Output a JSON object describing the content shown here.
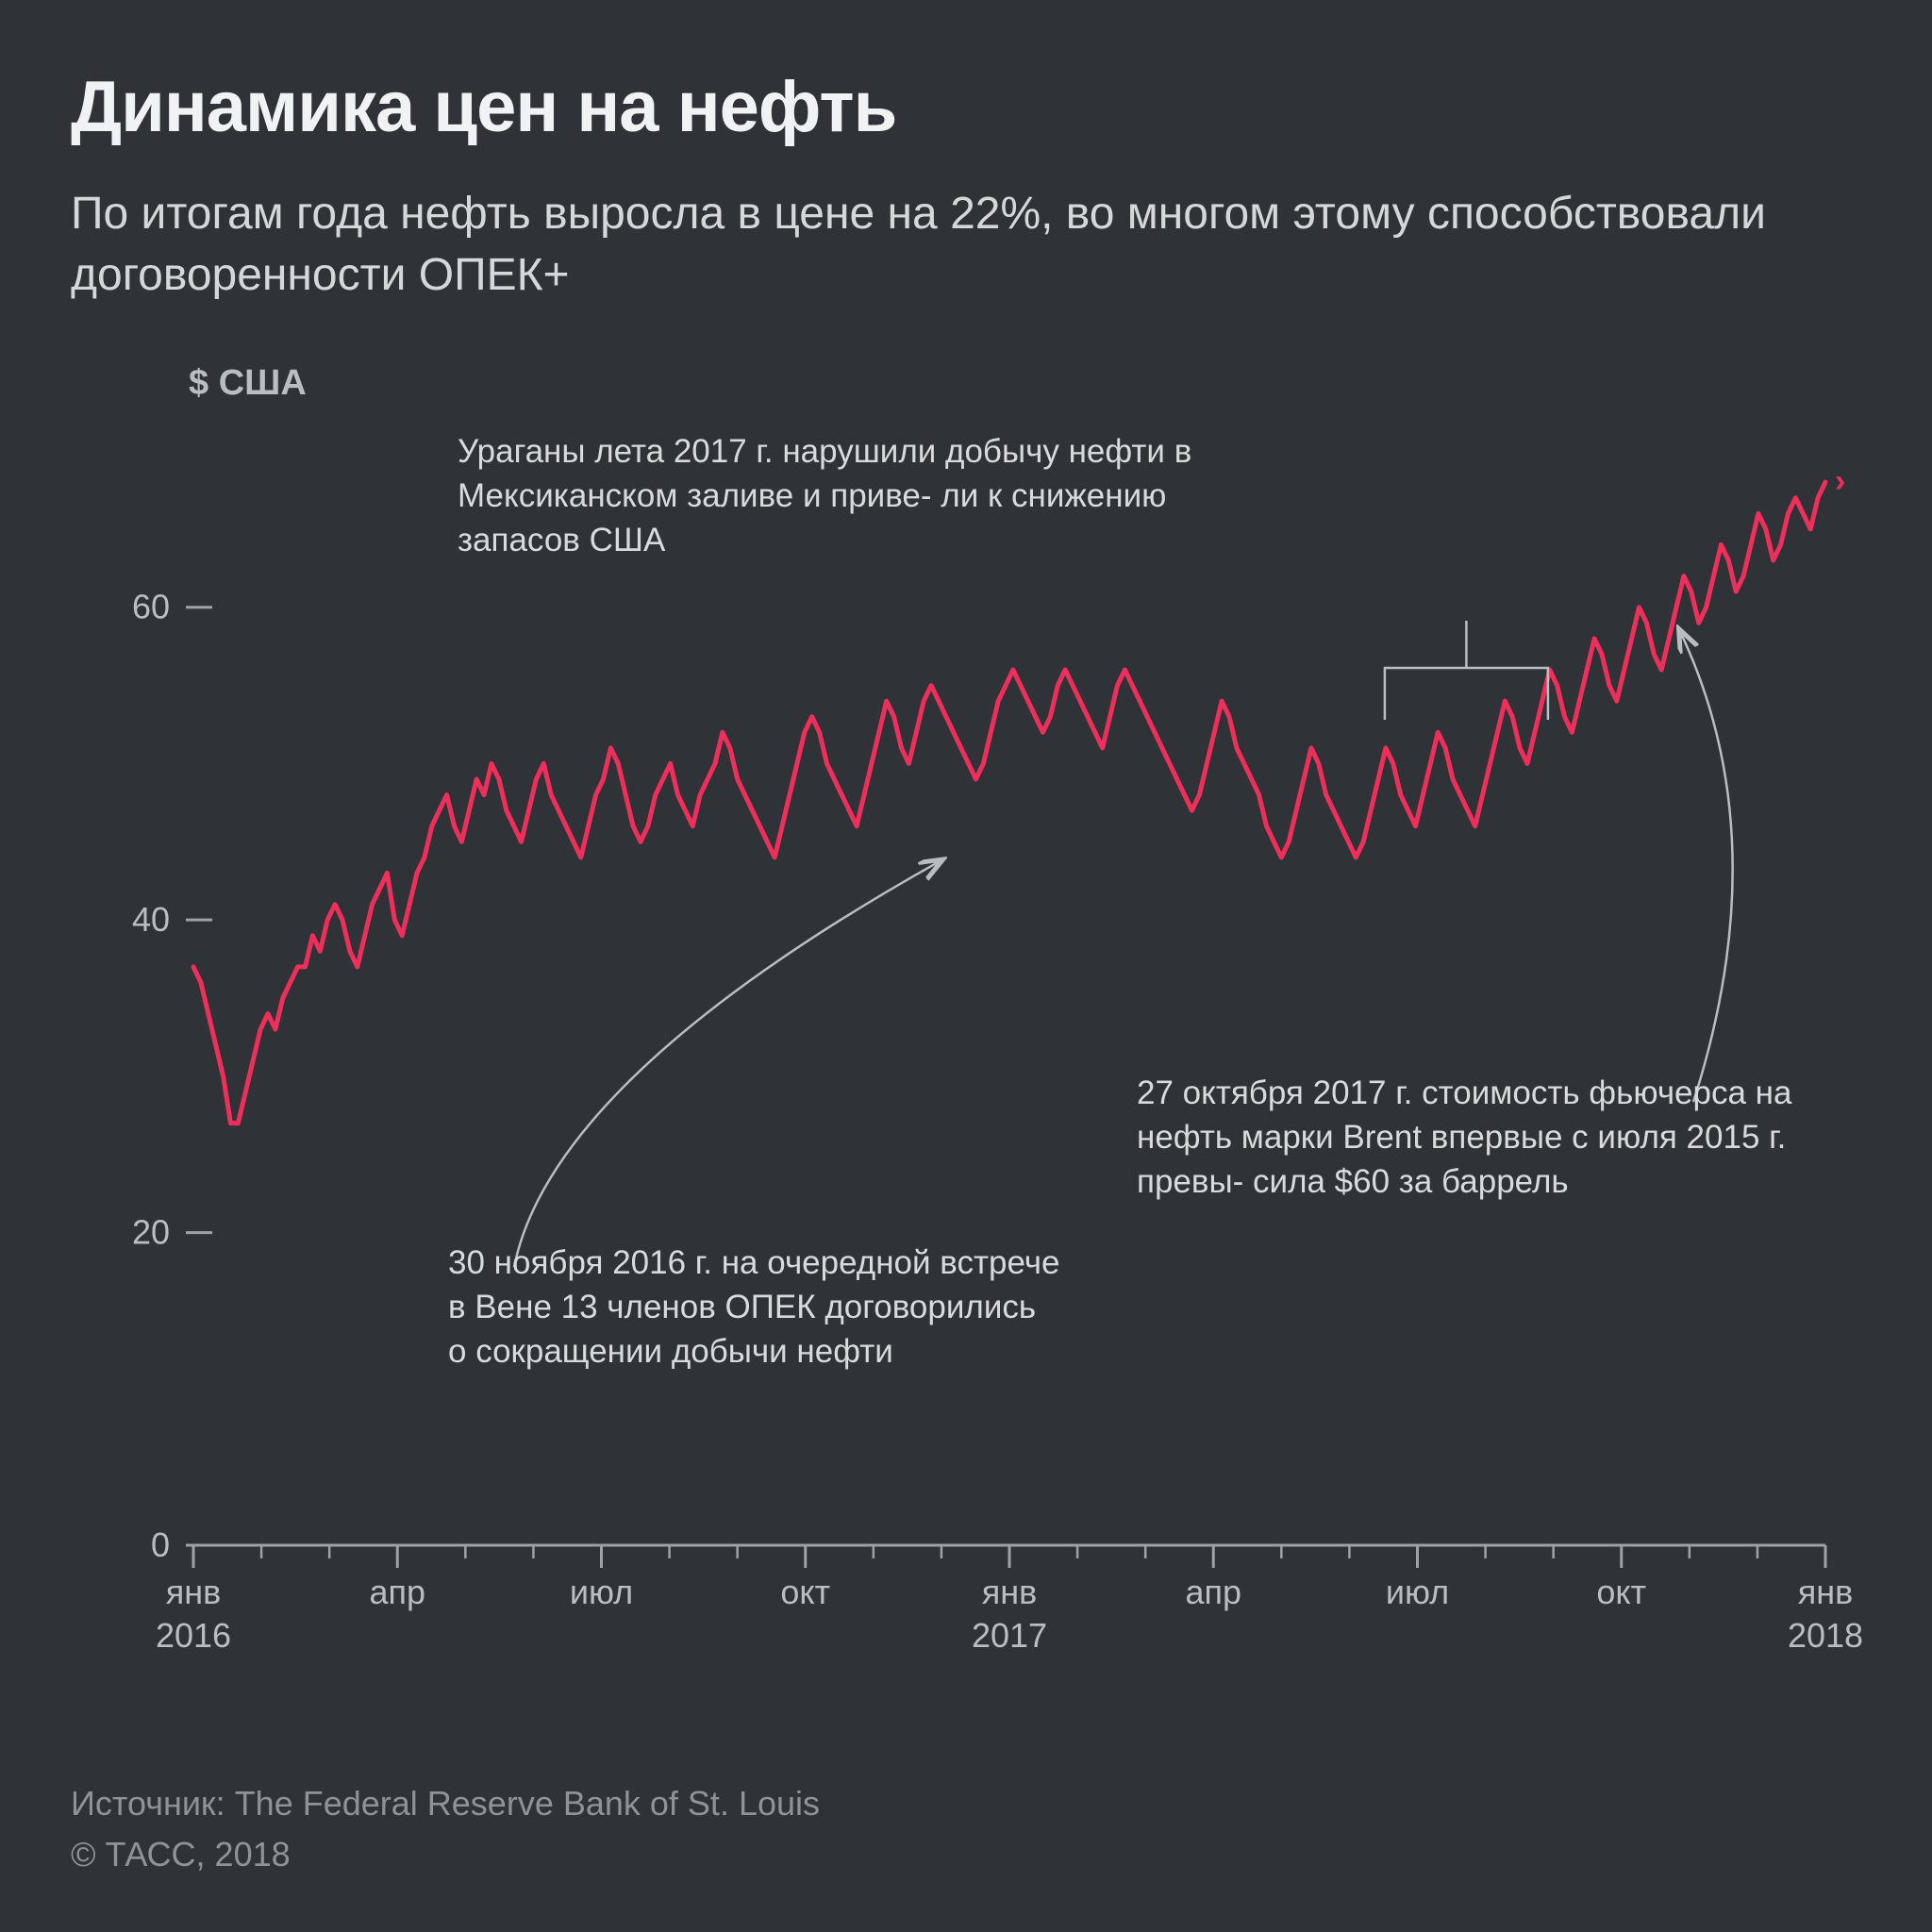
{
  "title": "Динамика цен на нефть",
  "subtitle": "По итогам года нефть выросла в цене на 22%, во многом этому способствовали договоренности ОПЕК+",
  "y_axis_label": "$ США",
  "footer_source": "Источник: The Federal Reserve Bank of St. Louis",
  "footer_copy": "© ТАСС, 2018",
  "chart": {
    "type": "line",
    "line_color": "#ef2f5b",
    "line_width": 5,
    "background_color": "#2f3237",
    "axis_color": "#9ea3a8",
    "tick_color": "#9ea3a8",
    "text_color": "#b9bec3",
    "ylim": [
      0,
      70
    ],
    "yticks": [
      0,
      20,
      40,
      60
    ],
    "x_major_ticks": [
      {
        "t": 0,
        "month": "янв",
        "year": "2016"
      },
      {
        "t": 0.125,
        "month": "апр"
      },
      {
        "t": 0.25,
        "month": "июл"
      },
      {
        "t": 0.375,
        "month": "окт"
      },
      {
        "t": 0.5,
        "month": "янв",
        "year": "2017"
      },
      {
        "t": 0.625,
        "month": "апр"
      },
      {
        "t": 0.75,
        "month": "июл"
      },
      {
        "t": 0.875,
        "month": "окт"
      },
      {
        "t": 1.0,
        "month": "янв",
        "year": "2018"
      }
    ],
    "x_minor_per_major": 3,
    "series": [
      37,
      36,
      34,
      32,
      30,
      27,
      27,
      29,
      31,
      33,
      34,
      33,
      35,
      36,
      37,
      37,
      39,
      38,
      40,
      41,
      40,
      38,
      37,
      39,
      41,
      42,
      43,
      40,
      39,
      41,
      43,
      44,
      46,
      47,
      48,
      46,
      45,
      47,
      49,
      48,
      50,
      49,
      47,
      46,
      45,
      47,
      49,
      50,
      48,
      47,
      46,
      45,
      44,
      46,
      48,
      49,
      51,
      50,
      48,
      46,
      45,
      46,
      48,
      49,
      50,
      48,
      47,
      46,
      48,
      49,
      50,
      52,
      51,
      49,
      48,
      47,
      46,
      45,
      44,
      46,
      48,
      50,
      52,
      53,
      52,
      50,
      49,
      48,
      47,
      46,
      48,
      50,
      52,
      54,
      53,
      51,
      50,
      52,
      54,
      55,
      54,
      53,
      52,
      51,
      50,
      49,
      50,
      52,
      54,
      55,
      56,
      55,
      54,
      53,
      52,
      53,
      55,
      56,
      55,
      54,
      53,
      52,
      51,
      53,
      55,
      56,
      55,
      54,
      53,
      52,
      51,
      50,
      49,
      48,
      47,
      48,
      50,
      52,
      54,
      53,
      51,
      50,
      49,
      48,
      46,
      45,
      44,
      45,
      47,
      49,
      51,
      50,
      48,
      47,
      46,
      45,
      44,
      45,
      47,
      49,
      51,
      50,
      48,
      47,
      46,
      48,
      50,
      52,
      51,
      49,
      48,
      47,
      46,
      48,
      50,
      52,
      54,
      53,
      51,
      50,
      52,
      54,
      56,
      55,
      53,
      52,
      54,
      56,
      58,
      57,
      55,
      54,
      56,
      58,
      60,
      59,
      57,
      56,
      58,
      60,
      62,
      61,
      59,
      60,
      62,
      64,
      63,
      61,
      62,
      64,
      66,
      65,
      63,
      64,
      66,
      67,
      66,
      65,
      67,
      68
    ],
    "end_marker": true,
    "end_marker_text": "→"
  },
  "annotations": {
    "hurricanes": "Ураганы лета 2017 г. нарушили добычу нефти в Мексиканском заливе и приве-\nли к снижению запасов США",
    "opec": "30 ноября 2016 г. на очередной встрече в Вене 13 членов ОПЕК договорились о сокращении добычи нефти",
    "brent60": "27 октября 2017 г. стоимость фьючерса на нефть марки Brent впервые с июля 2015 г. превы-\nсила $60 за баррель"
  },
  "annotation_style": {
    "arrow_color": "#b9bec3",
    "arrow_width": 2.5,
    "bracket_color": "#b9bec3"
  }
}
